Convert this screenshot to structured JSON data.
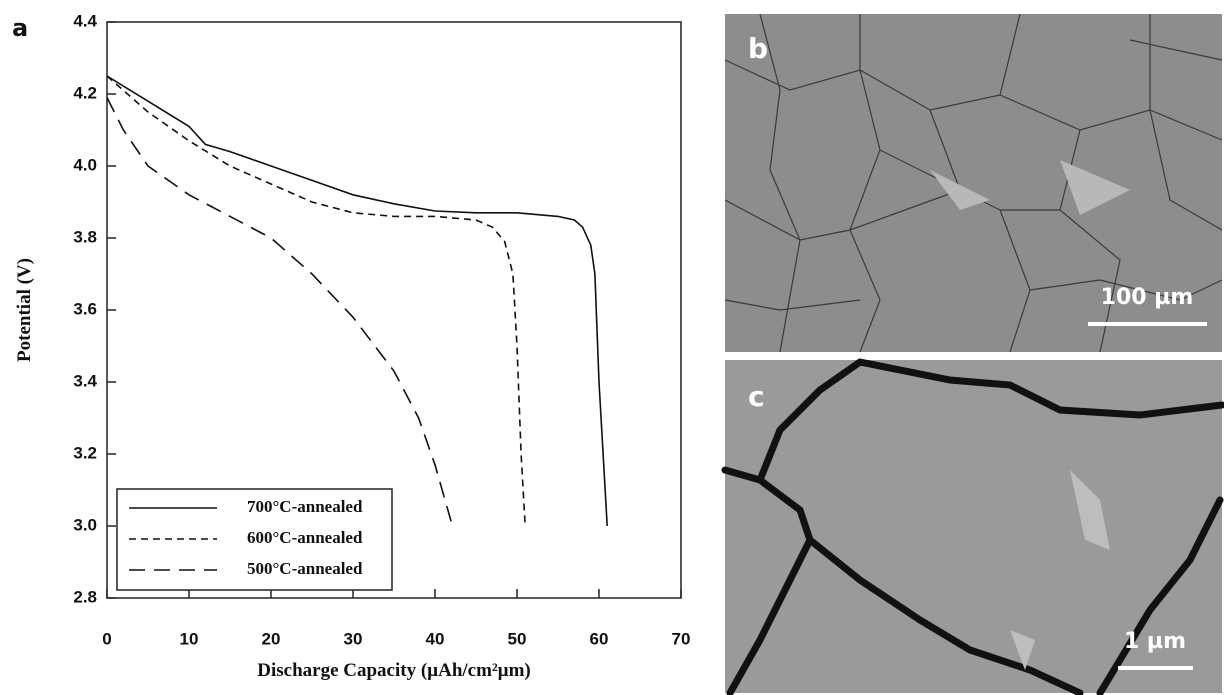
{
  "chart_data": {
    "type": "line",
    "panel_label": "a",
    "x_label": "Discharge Capacity (µAh/cm²µm)",
    "y_label": "Potential (V)",
    "xlim": [
      0,
      70
    ],
    "xticks": [
      0,
      10,
      20,
      30,
      40,
      50,
      60,
      70
    ],
    "ylim": [
      2.8,
      4.4
    ],
    "yticks": [
      2.8,
      {
        "value": 3,
        "label": "3.0"
      },
      3.2,
      3.4,
      3.6,
      3.8,
      {
        "value": 4,
        "label": "4.0"
      },
      4.2,
      4.4
    ],
    "legend": "lower left",
    "series": [
      {
        "name": "700°C-annealed",
        "color": "#111111",
        "linestyle": "solid",
        "x": [
          0,
          5,
          10,
          12,
          15,
          20,
          25,
          30,
          35,
          40,
          45,
          50,
          55,
          57,
          58,
          59,
          59.5,
          60,
          61
        ],
        "values": [
          4.25,
          4.18,
          4.11,
          4.06,
          4.04,
          4.0,
          3.96,
          3.92,
          3.895,
          3.875,
          3.87,
          3.87,
          3.86,
          3.85,
          3.83,
          3.78,
          3.7,
          3.4,
          3.0
        ]
      },
      {
        "name": "600°C-annealed",
        "color": "#111111",
        "linestyle": "dashed",
        "x": [
          0,
          5,
          10,
          15,
          20,
          25,
          30,
          35,
          40,
          45,
          47,
          48.5,
          49.5,
          50,
          50.5,
          51
        ],
        "values": [
          4.25,
          4.15,
          4.07,
          4.0,
          3.95,
          3.9,
          3.87,
          3.86,
          3.86,
          3.85,
          3.83,
          3.79,
          3.7,
          3.5,
          3.2,
          3.0
        ]
      },
      {
        "name": "500°C-annealed",
        "color": "#111111",
        "linestyle": "long-dashed",
        "x": [
          0,
          2,
          5,
          10,
          15,
          20,
          25,
          30,
          35,
          38,
          40,
          42
        ],
        "values": [
          4.19,
          4.1,
          4.0,
          3.92,
          3.86,
          3.8,
          3.7,
          3.58,
          3.43,
          3.3,
          3.17,
          3.01
        ]
      }
    ]
  },
  "images": [
    {
      "label": "b",
      "scale_bar": "100 µm"
    },
    {
      "label": "c",
      "scale_bar": "1 µm"
    }
  ]
}
